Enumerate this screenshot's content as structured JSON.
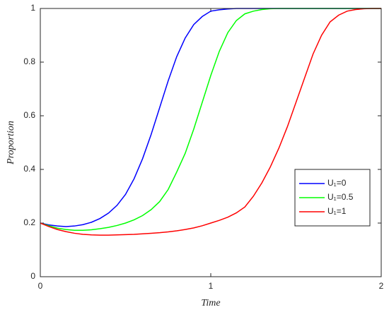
{
  "chart_data": {
    "type": "line",
    "xlabel": "Time",
    "ylabel": "Proportion",
    "x": [
      0,
      0.05,
      0.1,
      0.15,
      0.2,
      0.25,
      0.3,
      0.35,
      0.4,
      0.45,
      0.5,
      0.55,
      0.6,
      0.65,
      0.7,
      0.75,
      0.8,
      0.85,
      0.9,
      0.95,
      1,
      1.05,
      1.1,
      1.15,
      1.2,
      1.25,
      1.3,
      1.35,
      1.4,
      1.45,
      1.5,
      1.55,
      1.6,
      1.65,
      1.7,
      1.75,
      1.8,
      1.85,
      1.9,
      1.95,
      2
    ],
    "series": [
      {
        "name": "U₁=0",
        "color": "#0000ff",
        "values": [
          0.2,
          0.193,
          0.189,
          0.187,
          0.189,
          0.194,
          0.203,
          0.217,
          0.237,
          0.266,
          0.307,
          0.365,
          0.44,
          0.53,
          0.63,
          0.73,
          0.82,
          0.89,
          0.94,
          0.97,
          0.99,
          0.995,
          0.998,
          1,
          1,
          1,
          1,
          1,
          1,
          1,
          1,
          1,
          1,
          1,
          1,
          1,
          1,
          1,
          1,
          1,
          1
        ]
      },
      {
        "name": "U₁=0.5",
        "color": "#00ff00",
        "values": [
          0.2,
          0.19,
          0.181,
          0.176,
          0.173,
          0.173,
          0.175,
          0.179,
          0.184,
          0.191,
          0.2,
          0.212,
          0.228,
          0.25,
          0.28,
          0.325,
          0.39,
          0.46,
          0.55,
          0.65,
          0.75,
          0.84,
          0.91,
          0.955,
          0.98,
          0.99,
          0.996,
          0.999,
          1,
          1,
          1,
          1,
          1,
          1,
          1,
          1,
          1,
          1,
          1,
          1,
          1
        ]
      },
      {
        "name": "U₁=1",
        "color": "#ff0000",
        "values": [
          0.2,
          0.187,
          0.176,
          0.168,
          0.162,
          0.158,
          0.156,
          0.155,
          0.155,
          0.156,
          0.157,
          0.158,
          0.16,
          0.162,
          0.164,
          0.167,
          0.171,
          0.176,
          0.182,
          0.19,
          0.2,
          0.21,
          0.222,
          0.238,
          0.26,
          0.3,
          0.35,
          0.41,
          0.48,
          0.56,
          0.65,
          0.74,
          0.83,
          0.9,
          0.95,
          0.975,
          0.99,
          0.996,
          0.999,
          1,
          1
        ]
      }
    ],
    "xlim": [
      0,
      2
    ],
    "xticks": [
      0,
      1,
      2
    ],
    "ylim": [
      0,
      1
    ],
    "yticks": [
      0,
      0.2,
      0.4,
      0.6,
      0.8,
      1
    ],
    "grid": false,
    "legend": "right"
  }
}
